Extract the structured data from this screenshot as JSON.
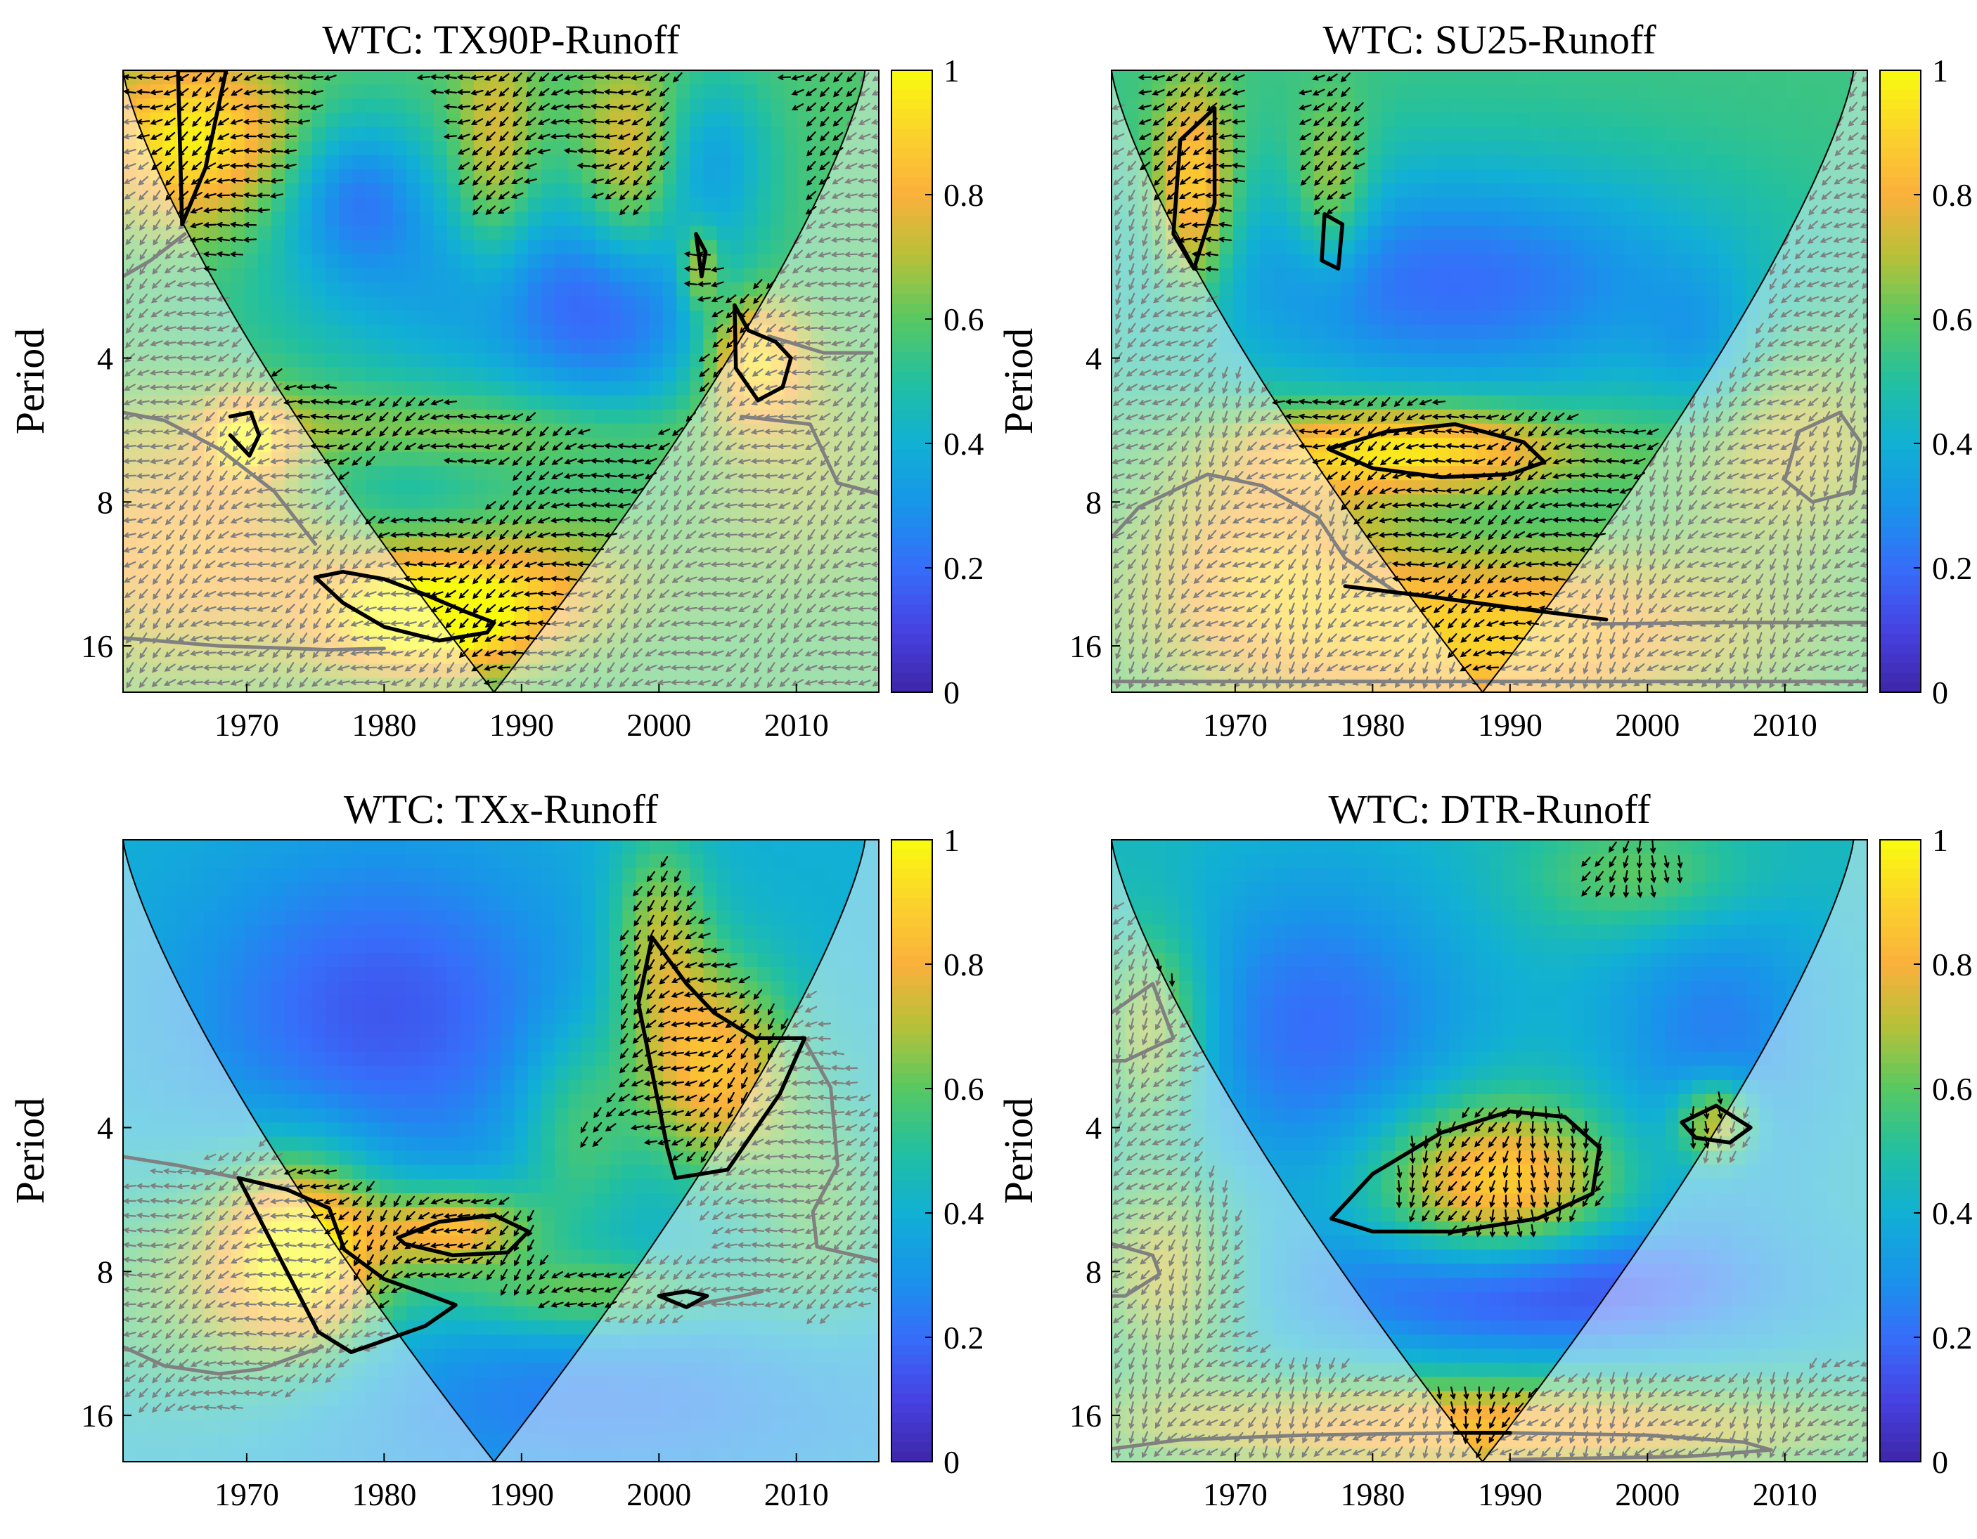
{
  "figure": {
    "colormap": "parula",
    "colors": {
      "cone_outline": "#000000",
      "significance_contour": "#000000",
      "outside_cone_contour": "#808080",
      "arrow_inside": "#000000",
      "arrow_outside": "#7f7f7f",
      "outside_overlay": "#ffffff"
    }
  },
  "chart_data": [
    {
      "id": "tx90p",
      "type": "heatmap",
      "title": "WTC: TX90P-Runoff",
      "xlabel": "",
      "ylabel": "Period",
      "xlim": [
        1961,
        2016
      ],
      "ylim": [
        1,
        20
      ],
      "yscale": "log2",
      "xticks": [
        1970,
        1980,
        1990,
        2000,
        2010
      ],
      "yticks": [
        4,
        8,
        16
      ],
      "colorbar": {
        "range": [
          0,
          1
        ],
        "ticks": [
          "0",
          "0.2",
          "0.4",
          "0.6",
          "0.8",
          "1"
        ]
      },
      "cone_center_year": 1988,
      "cone_apex_period": 20,
      "background": 0.58,
      "blobs": [
        {
          "x": 1966,
          "p": 1.4,
          "sx": 5,
          "sy": 0.4,
          "v": 0.4
        },
        {
          "x": 1985,
          "p": 3,
          "sx": 10,
          "sy": 0.5,
          "v": -0.2
        },
        {
          "x": 1997,
          "p": 3.2,
          "sx": 6,
          "sy": 0.6,
          "v": -0.3
        },
        {
          "x": 1978,
          "p": 1.8,
          "sx": 4,
          "sy": 0.4,
          "v": -0.3
        },
        {
          "x": 1988,
          "p": 1.5,
          "sx": 2,
          "sy": 0.6,
          "v": 0.2
        },
        {
          "x": 1998,
          "p": 1.6,
          "sx": 2.5,
          "sy": 0.5,
          "v": 0.25
        },
        {
          "x": 2004,
          "p": 1.5,
          "sx": 3,
          "sy": 0.4,
          "v": -0.2
        },
        {
          "x": 2007,
          "p": 4,
          "sx": 2.5,
          "sy": 0.3,
          "v": 0.4
        },
        {
          "x": 2003,
          "p": 2.6,
          "sx": 1,
          "sy": 0.2,
          "v": 0.3
        },
        {
          "x": 1985,
          "p": 5.7,
          "sx": 12,
          "sy": 0.2,
          "v": 0.15
        },
        {
          "x": 1970,
          "p": 5.9,
          "sx": 2,
          "sy": 0.2,
          "v": 0.35
        },
        {
          "x": 1980,
          "p": 7.2,
          "sx": 6,
          "sy": 0.3,
          "v": -0.15
        },
        {
          "x": 1983,
          "p": 14,
          "sx": 5,
          "sy": 0.25,
          "v": 0.5
        },
        {
          "x": 1990,
          "p": 12,
          "sx": 6,
          "sy": 0.3,
          "v": 0.2
        },
        {
          "x": 1966,
          "p": 10,
          "sx": 9,
          "sy": 0.6,
          "v": 0.25
        },
        {
          "x": 2010,
          "p": 7,
          "sx": 6,
          "sy": 0.6,
          "v": 0.1
        }
      ],
      "significance_contours": [
        {
          "x": [
            1975,
            1977,
            1980,
            1983,
            1986,
            1988,
            1987.5,
            1984,
            1980,
            1977,
            1975
          ],
          "p": [
            11.5,
            11.2,
            11.6,
            12.5,
            13.6,
            14.3,
            15.0,
            15.6,
            14.6,
            13.0,
            11.5
          ]
        },
        {
          "x": [
            2005.5,
            2006.5,
            2008.5,
            2009.6,
            2009.0,
            2007.2,
            2005.6,
            2005.5
          ],
          "p": [
            3.1,
            3.5,
            3.7,
            4.0,
            4.6,
            4.9,
            4.2,
            3.1
          ]
        },
        {
          "x": [
            1968.8,
            1970.3,
            1970.9,
            1970.2,
            1968.8
          ],
          "p": [
            5.3,
            5.2,
            5.8,
            6.4,
            5.8
          ]
        },
        {
          "x": [
            2002.7,
            2003.4,
            2003.1,
            2002.7
          ],
          "p": [
            2.2,
            2.4,
            2.7,
            2.2
          ]
        },
        {
          "x": [
            1965,
            1968.5,
            1967,
            1965.3,
            1965
          ],
          "p": [
            1.0,
            1.0,
            1.6,
            2.1,
            1.0
          ]
        }
      ],
      "outside_contours": [
        {
          "x": [
            1961,
            1964,
            1968,
            1972,
            1975
          ],
          "p": [
            5.2,
            5.4,
            6.2,
            7.6,
            9.8
          ]
        },
        {
          "x": [
            1961,
            1968,
            1976,
            1980
          ],
          "p": [
            15.4,
            16.0,
            16.3,
            16.2
          ]
        },
        {
          "x": [
            1961,
            1963,
            1965.5
          ],
          "p": [
            2.7,
            2.5,
            2.2
          ]
        },
        {
          "x": [
            2008,
            2012,
            2015.5
          ],
          "p": [
            3.6,
            3.9,
            3.9
          ]
        },
        {
          "x": [
            2006,
            2011,
            2013,
            2016
          ],
          "p": [
            5.3,
            5.5,
            7.3,
            7.7
          ]
        }
      ],
      "phase_angle_inside_deg": 200,
      "phase_angle_outside_deg": 210
    },
    {
      "id": "su25",
      "type": "heatmap",
      "title": "WTC: SU25-Runoff",
      "xlabel": "",
      "ylabel": "Period",
      "xlim": [
        1961,
        2016
      ],
      "ylim": [
        1,
        20
      ],
      "yscale": "log2",
      "xticks": [
        1970,
        1980,
        1990,
        2000,
        2010
      ],
      "yticks": [
        4,
        8,
        16
      ],
      "colorbar": {
        "range": [
          0,
          1
        ],
        "ticks": [
          "0",
          "0.2",
          "0.4",
          "0.6",
          "0.8",
          "1"
        ]
      },
      "cone_center_year": 1988,
      "cone_apex_period": 20,
      "background": 0.55,
      "blobs": [
        {
          "x": 1986,
          "p": 2.8,
          "sx": 14,
          "sy": 0.6,
          "v": -0.35
        },
        {
          "x": 1967,
          "p": 1.8,
          "sx": 2,
          "sy": 0.5,
          "v": 0.4
        },
        {
          "x": 1977,
          "p": 1.8,
          "sx": 2,
          "sy": 0.4,
          "v": 0.25
        },
        {
          "x": 1983,
          "p": 6.2,
          "sx": 8,
          "sy": 0.22,
          "v": 0.45
        },
        {
          "x": 1988,
          "p": 8.8,
          "sx": 10,
          "sy": 0.3,
          "v": -0.05
        },
        {
          "x": 1988,
          "p": 15,
          "sx": 14,
          "sy": 0.45,
          "v": 0.35
        },
        {
          "x": 1972,
          "p": 10,
          "sx": 6,
          "sy": 0.5,
          "v": 0.25
        },
        {
          "x": 2010,
          "p": 6,
          "sx": 6,
          "sy": 0.5,
          "v": 0.2
        },
        {
          "x": 2004,
          "p": 4,
          "sx": 3,
          "sy": 0.4,
          "v": -0.15
        }
      ],
      "significance_contours": [
        {
          "x": [
            1966,
            1968.5,
            1968.5,
            1967,
            1965.5,
            1966
          ],
          "p": [
            1.4,
            1.2,
            1.9,
            2.6,
            2.2,
            1.4
          ]
        },
        {
          "x": [
            1976.5,
            1977.8,
            1977.5,
            1976.3,
            1976.5
          ],
          "p": [
            2.0,
            2.1,
            2.6,
            2.5,
            2.0
          ]
        },
        {
          "x": [
            1976.8,
            1981,
            1986,
            1991,
            1992.5,
            1990,
            1985,
            1980,
            1976.8
          ],
          "p": [
            6.2,
            5.7,
            5.5,
            6.0,
            6.6,
            7.0,
            7.1,
            6.8,
            6.2
          ]
        },
        {
          "x": [
            1978,
            1984,
            1990,
            1997
          ],
          "p": [
            12.0,
            12.6,
            13.3,
            14.1
          ]
        }
      ],
      "outside_contours": [
        {
          "x": [
            1961,
            1963,
            1968,
            1972,
            1976,
            1978,
            1982
          ],
          "p": [
            9.5,
            8.2,
            7.0,
            7.4,
            8.6,
            10.5,
            12.5
          ]
        },
        {
          "x": [
            1996,
            2005,
            2016
          ],
          "p": [
            14.4,
            14.3,
            14.3
          ]
        },
        {
          "x": [
            1961,
            2016
          ],
          "p": [
            19.0,
            19.0
          ]
        },
        {
          "x": [
            2011,
            2014,
            2015.5,
            2015,
            2012,
            2010,
            2011
          ],
          "p": [
            5.7,
            5.2,
            6.0,
            7.6,
            8.0,
            7.2,
            5.7
          ]
        }
      ],
      "phase_angle_inside_deg": 200,
      "phase_angle_outside_deg": 225
    },
    {
      "id": "txx",
      "type": "heatmap",
      "title": "WTC: TXx-Runoff",
      "xlabel": "",
      "ylabel": "Period",
      "xlim": [
        1961,
        2016
      ],
      "ylim": [
        1,
        20
      ],
      "yscale": "log2",
      "xticks": [
        1970,
        1980,
        1990,
        2000,
        2010
      ],
      "yticks": [
        4,
        8,
        16
      ],
      "colorbar": {
        "range": [
          0,
          1
        ],
        "ticks": [
          "0",
          "0.2",
          "0.4",
          "0.6",
          "0.8",
          "1"
        ]
      },
      "cone_center_year": 1988,
      "cone_apex_period": 20,
      "background": 0.4,
      "blobs": [
        {
          "x": 1980,
          "p": 2.3,
          "sx": 10,
          "sy": 0.8,
          "v": -0.25
        },
        {
          "x": 2004,
          "p": 3,
          "sx": 4,
          "sy": 0.5,
          "v": 0.45
        },
        {
          "x": 2000,
          "p": 1.6,
          "sx": 2.5,
          "sy": 0.5,
          "v": 0.3
        },
        {
          "x": 1994,
          "p": 4,
          "sx": 3,
          "sy": 0.5,
          "v": 0.2
        },
        {
          "x": 1974,
          "p": 7.2,
          "sx": 4,
          "sy": 0.45,
          "v": 0.55
        },
        {
          "x": 1985,
          "p": 6.5,
          "sx": 4,
          "sy": 0.2,
          "v": 0.45
        },
        {
          "x": 1995,
          "p": 9,
          "sx": 8,
          "sy": 0.2,
          "v": 0.25
        },
        {
          "x": 1967,
          "p": 9,
          "sx": 8,
          "sy": 0.6,
          "v": 0.25
        },
        {
          "x": 1995,
          "p": 15,
          "sx": 18,
          "sy": 0.5,
          "v": -0.15
        },
        {
          "x": 2012,
          "p": 6,
          "sx": 4,
          "sy": 0.6,
          "v": 0.2
        }
      ],
      "significance_contours": [
        {
          "x": [
            1998.5,
            1999.5,
            2002,
            2004,
            2007,
            2010.6,
            2008.8,
            2005,
            2001.2,
            2000.6,
            1998.5
          ],
          "p": [
            2.2,
            1.6,
            2.0,
            2.3,
            2.6,
            2.6,
            3.4,
            4.9,
            5.1,
            4.4,
            2.2
          ]
        },
        {
          "x": [
            1969.4,
            1973,
            1976,
            1977.1,
            1980,
            1983,
            1985.2,
            1983,
            1977.6,
            1975.2,
            1969.4
          ],
          "p": [
            5.1,
            5.4,
            5.9,
            7.2,
            8.3,
            8.9,
            9.4,
            10.4,
            11.8,
            10.7,
            5.1
          ]
        },
        {
          "x": [
            1981,
            1984,
            1988,
            1990.5,
            1989,
            1985,
            1981.5,
            1981
          ],
          "p": [
            6.8,
            6.3,
            6.1,
            6.6,
            7.3,
            7.4,
            7.0,
            6.8
          ]
        },
        {
          "x": [
            2000,
            2002,
            2003.5,
            2002,
            2000
          ],
          "p": [
            9.0,
            8.8,
            9.0,
            9.5,
            9.0
          ]
        }
      ],
      "outside_contours": [
        {
          "x": [
            1961,
            1965,
            1969.4
          ],
          "p": [
            4.6,
            4.8,
            5.1
          ]
        },
        {
          "x": [
            1961,
            1964,
            1968,
            1971,
            1975.5
          ],
          "p": [
            11.5,
            12.6,
            13.1,
            12.8,
            11.5
          ]
        },
        {
          "x": [
            2010.5,
            2012.5,
            2013,
            2011.2,
            2011.5,
            2016
          ],
          "p": [
            2.6,
            3.3,
            4.8,
            6.0,
            7.1,
            7.6
          ]
        },
        {
          "x": [
            2002.5,
            2006,
            2007.5
          ],
          "p": [
            9.4,
            9.0,
            8.8
          ]
        }
      ],
      "phase_angle_inside_deg": 215,
      "phase_angle_outside_deg": 200
    },
    {
      "id": "dtr",
      "type": "heatmap",
      "title": "WTC: DTR-Runoff",
      "xlabel": "",
      "ylabel": "Period",
      "xlim": [
        1961,
        2016
      ],
      "ylim": [
        1,
        20
      ],
      "yscale": "log2",
      "xticks": [
        1970,
        1980,
        1990,
        2000,
        2010
      ],
      "yticks": [
        4,
        8,
        16
      ],
      "colorbar": {
        "range": [
          0,
          1
        ],
        "ticks": [
          "0",
          "0.2",
          "0.4",
          "0.6",
          "0.8",
          "1"
        ]
      },
      "cone_center_year": 1988,
      "cone_apex_period": 20,
      "background": 0.45,
      "blobs": [
        {
          "x": 1976,
          "p": 2.5,
          "sx": 8,
          "sy": 0.8,
          "v": -0.25
        },
        {
          "x": 2005,
          "p": 2.5,
          "sx": 6,
          "sy": 0.8,
          "v": -0.2
        },
        {
          "x": 1989,
          "p": 5.3,
          "sx": 6,
          "sy": 0.4,
          "v": 0.5
        },
        {
          "x": 2005,
          "p": 3.9,
          "sx": 2,
          "sy": 0.2,
          "v": 0.4
        },
        {
          "x": 1992,
          "p": 8.6,
          "sx": 12,
          "sy": 0.35,
          "v": -0.35
        },
        {
          "x": 1988,
          "p": 17,
          "sx": 20,
          "sy": 0.25,
          "v": 0.4
        },
        {
          "x": 1965,
          "p": 8,
          "sx": 4,
          "sy": 0.5,
          "v": 0.3
        },
        {
          "x": 1964,
          "p": 2.5,
          "sx": 3,
          "sy": 0.5,
          "v": 0.3
        },
        {
          "x": 2000,
          "p": 1.2,
          "sx": 6,
          "sy": 0.3,
          "v": 0.2
        }
      ],
      "significance_contours": [
        {
          "x": [
            1977,
            1980,
            1985,
            1990,
            1994,
            1996.5,
            1996,
            1992,
            1986,
            1980,
            1977
          ],
          "p": [
            6.2,
            5.0,
            4.1,
            3.7,
            3.8,
            4.4,
            5.5,
            6.2,
            6.6,
            6.6,
            6.2
          ]
        },
        {
          "x": [
            2002.5,
            2005,
            2007.5,
            2006,
            2003.5,
            2002.5
          ],
          "p": [
            3.9,
            3.6,
            4.0,
            4.3,
            4.2,
            3.9
          ]
        },
        {
          "x": [
            1986,
            1990
          ],
          "p": [
            17.4,
            17.4
          ]
        }
      ],
      "outside_contours": [
        {
          "x": [
            1961,
            1964,
            1965.5,
            1962,
            1961
          ],
          "p": [
            2.3,
            2.0,
            2.6,
            2.9,
            2.9
          ]
        },
        {
          "x": [
            1961,
            1964,
            1964.5,
            1962,
            1961
          ],
          "p": [
            7.0,
            7.4,
            8.1,
            9.0,
            9.0
          ]
        },
        {
          "x": [
            1961,
            1966,
            1975,
            1986
          ],
          "p": [
            18.8,
            18.0,
            17.6,
            17.4
          ]
        },
        {
          "x": [
            1990,
            2000,
            2007,
            2009,
            2003,
            1990
          ],
          "p": [
            17.4,
            17.6,
            18.2,
            18.9,
            19.5,
            19.8
          ]
        }
      ],
      "phase_angle_inside_deg": 255,
      "phase_angle_outside_deg": 230
    }
  ]
}
